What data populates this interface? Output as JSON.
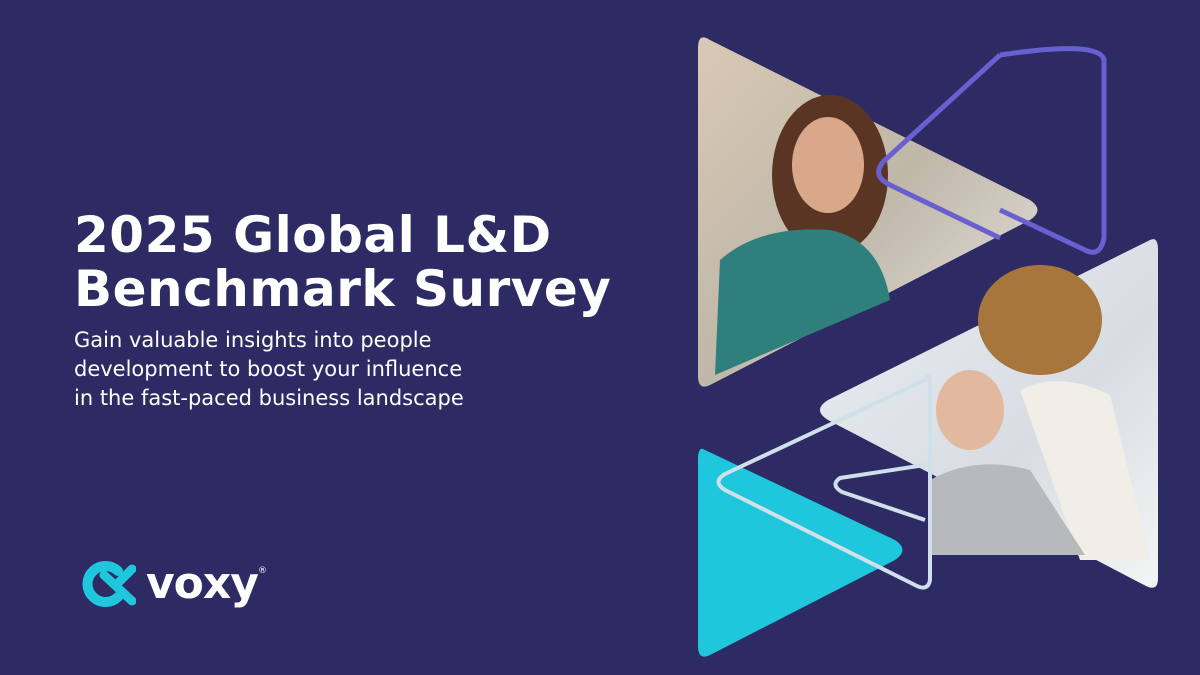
{
  "header": {
    "title_lines": [
      "2025 Global L&D",
      "Benchmark Survey"
    ],
    "subtitle_lines": [
      "Gain valuable insights into people",
      "development to boost your influence",
      "in the fast-paced business landscape"
    ]
  },
  "logo": {
    "name": "voxy",
    "mark": "®"
  }
}
